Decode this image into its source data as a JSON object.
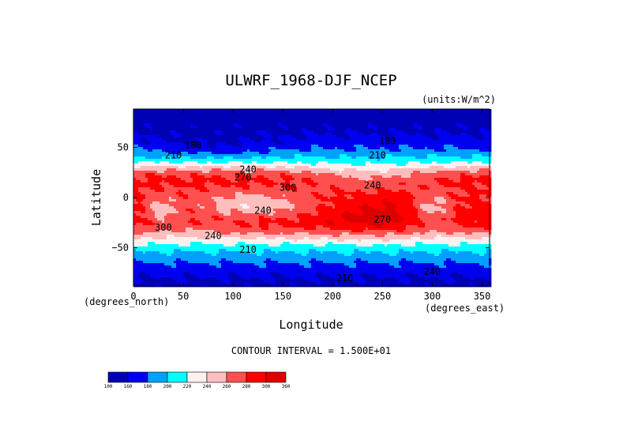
{
  "chart_data": {
    "type": "heatmap",
    "title": "ULWRF_1968-DJF_NCEP",
    "units": "(units:W/m^2)",
    "xlabel": "Longitude",
    "ylabel": "Latitude",
    "x_unit_note": "(degrees_east)",
    "y_unit_note": "(degrees_north)",
    "xlim": [
      0,
      357.5
    ],
    "ylim": [
      -88,
      88
    ],
    "x_ticks": [
      0,
      50,
      100,
      150,
      200,
      250,
      300,
      350
    ],
    "y_ticks": [
      50,
      0,
      -50
    ],
    "x_tick_labels": [
      "0",
      "50",
      "100",
      "150",
      "200",
      "250",
      "300",
      "350"
    ],
    "y_tick_labels": [
      "50",
      "0",
      "−50"
    ],
    "contour_interval_text": "CONTOUR INTERVAL = 1.500E+01",
    "colorbar": {
      "levels": [
        100,
        160,
        180,
        200,
        220,
        240,
        260,
        280,
        300,
        360
      ],
      "labels": [
        "100",
        "160",
        "180",
        "200",
        "220",
        "240",
        "260",
        "280",
        "300",
        "360"
      ],
      "colors": [
        "#0000b4",
        "#0000f0",
        "#00a0ff",
        "#00ffff",
        "#fff0f0",
        "#ffbebe",
        "#ff5050",
        "#ff0000",
        "#dd0000"
      ]
    },
    "contour_labels": [
      {
        "text": "180",
        "lon": 60,
        "lat": 52
      },
      {
        "text": "210",
        "lon": 40,
        "lat": 42
      },
      {
        "text": "240",
        "lon": 115,
        "lat": 28
      },
      {
        "text": "270",
        "lon": 110,
        "lat": 20
      },
      {
        "text": "180",
        "lon": 255,
        "lat": 56
      },
      {
        "text": "210",
        "lon": 245,
        "lat": 42
      },
      {
        "text": "240",
        "lon": 240,
        "lat": 12
      },
      {
        "text": "300",
        "lon": 155,
        "lat": 10
      },
      {
        "text": "240",
        "lon": 130,
        "lat": -13
      },
      {
        "text": "300",
        "lon": 30,
        "lat": -30
      },
      {
        "text": "270",
        "lon": 250,
        "lat": -22
      },
      {
        "text": "240",
        "lon": 80,
        "lat": -38
      },
      {
        "text": "210",
        "lon": 115,
        "lat": -52
      },
      {
        "text": "210",
        "lon": 212,
        "lat": -80
      },
      {
        "text": "240",
        "lon": 300,
        "lat": -74
      }
    ]
  }
}
